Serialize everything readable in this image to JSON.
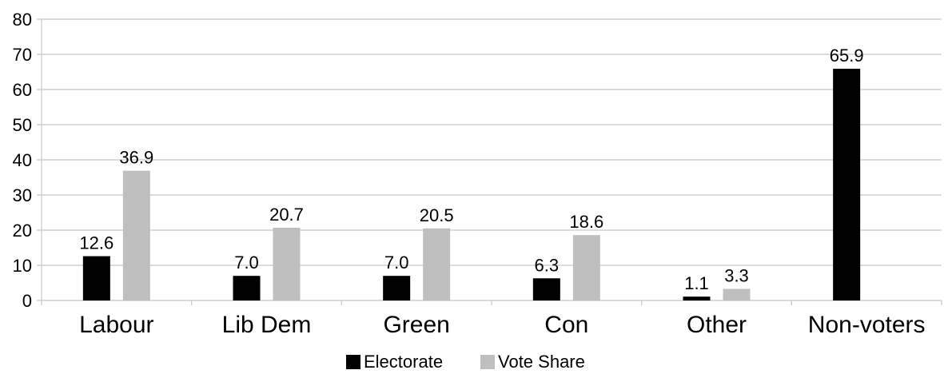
{
  "chart_data": {
    "type": "bar",
    "categories": [
      "Labour",
      "Lib Dem",
      "Green",
      "Con",
      "Other",
      "Non-voters"
    ],
    "series": [
      {
        "name": "Electorate",
        "values": [
          12.6,
          7.0,
          7.0,
          6.3,
          1.1,
          65.9
        ],
        "labels": [
          "12.6",
          "7.0",
          "7.0",
          "6.3",
          "1.1",
          "65.9"
        ],
        "color": "#000000"
      },
      {
        "name": "Vote Share",
        "values": [
          36.9,
          20.7,
          20.5,
          18.6,
          3.3,
          null
        ],
        "labels": [
          "36.9",
          "20.7",
          "20.5",
          "18.6",
          "3.3",
          ""
        ],
        "color": "#bfbfbf"
      }
    ],
    "ylim": [
      0,
      80
    ],
    "yticks": [
      "0",
      "10",
      "20",
      "30",
      "40",
      "50",
      "60",
      "70",
      "80"
    ],
    "grid": true,
    "legend_position": "bottom-center"
  }
}
